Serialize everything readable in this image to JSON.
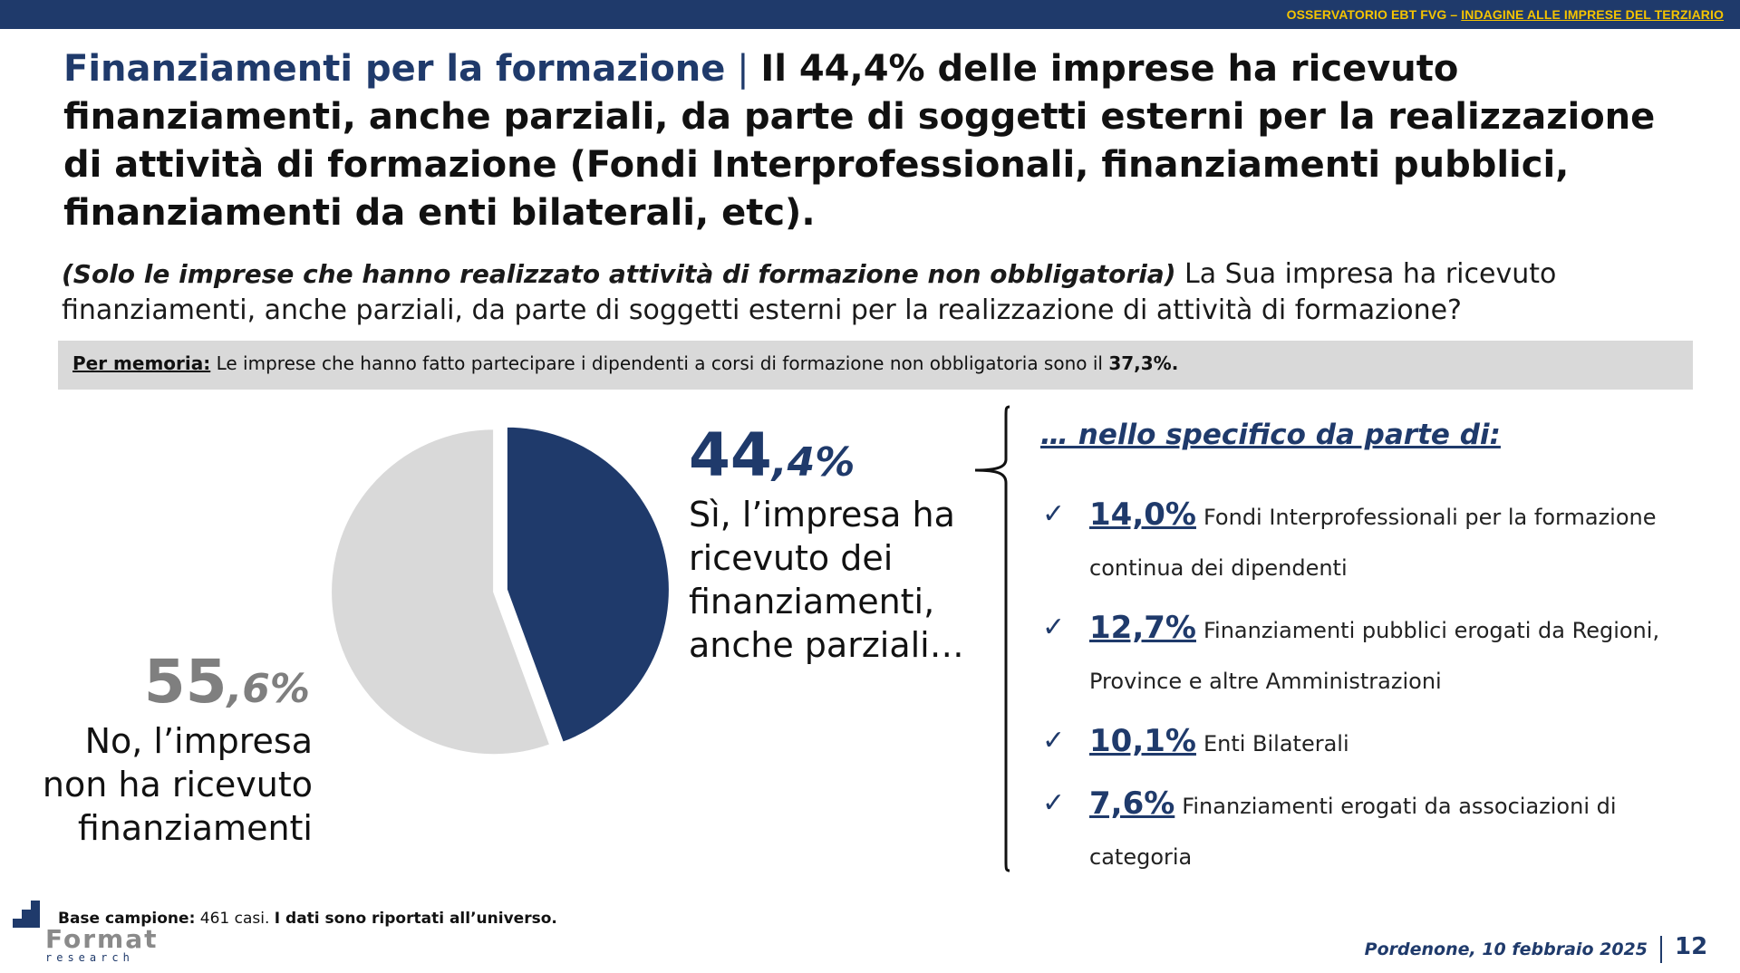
{
  "header": {
    "survey": "OSSERVATORIO EBT FVG",
    "dash": " – ",
    "survey_link": "INDAGINE ALLE IMPRESE DEL TERZIARIO"
  },
  "title": {
    "topic": "Finanziamenti per la formazione",
    "separator": " | ",
    "headline": "Il 44,4% delle imprese ha ricevuto finanziamenti, anche parziali, da parte di soggetti esterni per la realizzazione di attività di formazione (Fondi Interprofessionali, finanziamenti pubblici, finanziamenti da enti bilaterali, etc)."
  },
  "question": {
    "condition": "(Solo le imprese che hanno realizzato attività di formazione non obbligatoria)",
    "text": " La Sua impresa ha ricevuto finanziamenti, anche parziali, da parte di soggetti esterni per la realizzazione di attività di formazione?"
  },
  "memo": {
    "label": "Per memoria:",
    "text": " Le imprese che hanno fatto partecipare i dipendenti a corsi di formazione non obbligatoria sono il ",
    "value": "37,3%."
  },
  "chart_data": {
    "type": "pie",
    "slices": [
      {
        "label": "Sì, l’impresa ha ricevuto dei finanziamenti, anche parziali…",
        "value": 44.4,
        "integer": "44",
        "decimal": ",4%",
        "color": "#1f3a6b"
      },
      {
        "label": "No, l’impresa non ha ricevuto finanziamenti",
        "value": 55.6,
        "integer": "55",
        "decimal": ",6%",
        "color": "#d9d9d9"
      }
    ]
  },
  "detail": {
    "title": "… nello specifico da parte di:",
    "check_icon": "checkmark-icon",
    "items": [
      {
        "pct": "14,0%",
        "text": "Fondi Interprofessionali per la formazione continua dei dipendenti"
      },
      {
        "pct": "12,7%",
        "text": "Finanziamenti pubblici erogati da Regioni, Province e altre Amministrazioni"
      },
      {
        "pct": "10,1%",
        "text": "Enti Bilaterali"
      },
      {
        "pct": "7,6%",
        "text": "Finanziamenti erogati da associazioni di categoria"
      }
    ]
  },
  "footer": {
    "base_label": "Base campione:",
    "base_value": " 461 casi. ",
    "base_note": "I dati sono riportati all’universo.",
    "logo_word": "Format",
    "logo_sub": "research",
    "date": "Pordenone, 10 febbraio 2025",
    "page": "12"
  },
  "colors": {
    "brand_navy": "#1f3a6b",
    "accent_yellow": "#f5c400",
    "no_gray": "#d9d9d9",
    "no_pct_gray": "#7f7f7f"
  }
}
